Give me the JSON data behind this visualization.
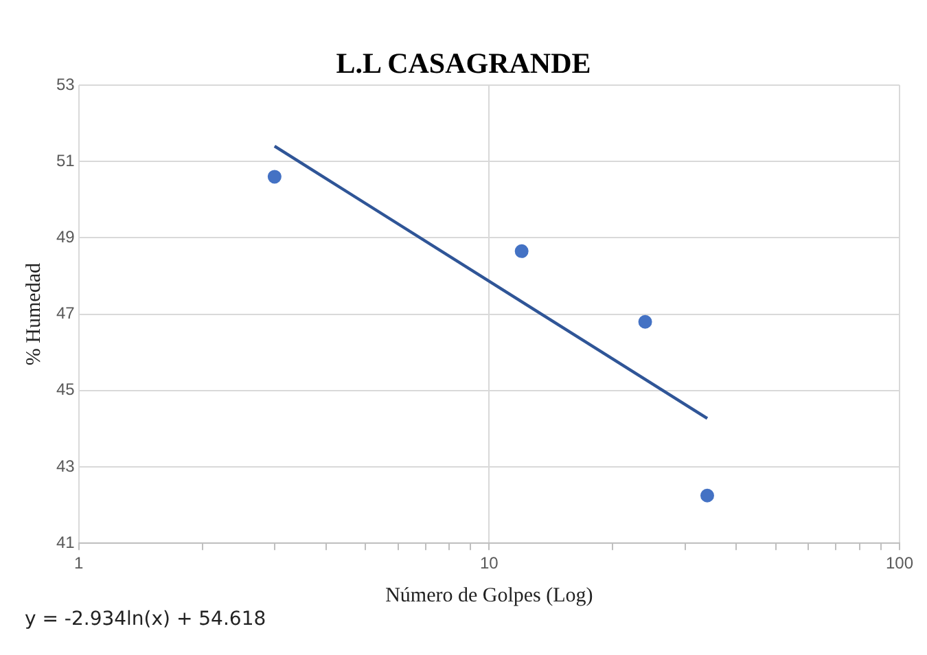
{
  "chart_data": {
    "type": "scatter",
    "title": "L.L CASAGRANDE",
    "xlabel": "Número de Golpes (Log)",
    "ylabel": "% Humedad",
    "log": "x",
    "grid": true,
    "legend": false,
    "marker": "circle",
    "xlim": [
      1,
      100
    ],
    "xticks": [
      1,
      {
        "value": 2,
        "label": null
      },
      {
        "value": 3,
        "label": null
      },
      {
        "value": 4,
        "label": null
      },
      {
        "value": 5,
        "label": null
      },
      {
        "value": 6,
        "label": null
      },
      {
        "value": 7,
        "label": null
      },
      {
        "value": 8,
        "label": null
      },
      {
        "value": 9,
        "label": null
      },
      10,
      {
        "value": 20,
        "label": null
      },
      {
        "value": 30,
        "label": null
      },
      {
        "value": 40,
        "label": null
      },
      {
        "value": 50,
        "label": null
      },
      {
        "value": 60,
        "label": null
      },
      {
        "value": 70,
        "label": null
      },
      {
        "value": 80,
        "label": null
      },
      {
        "value": 90,
        "label": null
      },
      100
    ],
    "ylim": [
      41,
      53
    ],
    "yticks": [
      41,
      43,
      45,
      47,
      49,
      51,
      53
    ],
    "series": [
      {
        "color": "#4472c4",
        "x": [
          3,
          12,
          24,
          34
        ],
        "values": [
          50.6,
          48.65,
          46.8,
          42.25
        ]
      },
      {
        "type": "line",
        "color": "#2f5597",
        "marker": "none",
        "x": [
          3,
          34
        ],
        "values": [
          51.4,
          44.27
        ]
      }
    ],
    "annotations": [
      "y = -2.934ln(x) + 54.618"
    ]
  }
}
